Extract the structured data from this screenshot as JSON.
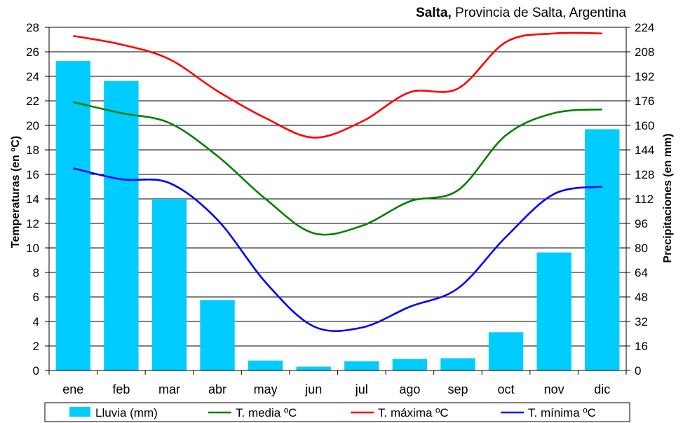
{
  "chart_data": {
    "type": "bar+line",
    "title_bold": "Salta,",
    "title_rest": " Provincia de Salta, Argentina",
    "ylabel_left": "Temperaturas (en ºC)",
    "ylabel_right": "Precipitaciones (en mm)",
    "categories": [
      "ene",
      "feb",
      "mar",
      "abr",
      "may",
      "jun",
      "jul",
      "ago",
      "sep",
      "oct",
      "nov",
      "dic"
    ],
    "ylim_left": [
      0,
      28
    ],
    "ylim_right": [
      0,
      224
    ],
    "yticks_left": [
      0,
      2,
      4,
      6,
      8,
      10,
      12,
      14,
      16,
      18,
      20,
      22,
      24,
      26,
      28
    ],
    "yticks_right": [
      0,
      16,
      32,
      48,
      64,
      80,
      96,
      112,
      128,
      144,
      160,
      176,
      192,
      208,
      224
    ],
    "grid": "horizontal",
    "legend_position": "bottom",
    "bar_series": {
      "name": "Lluvia (mm)",
      "axis": "right",
      "color": "#00CCFF",
      "values": [
        202,
        189,
        112,
        46,
        6.5,
        2.5,
        6,
        7.5,
        8,
        25,
        77,
        157.5
      ]
    },
    "line_series": [
      {
        "name": "T. media ºC",
        "axis": "left",
        "color": "#008000",
        "values": [
          21.9,
          21.0,
          20.2,
          17.5,
          14.0,
          11.2,
          11.8,
          13.8,
          14.7,
          19.2,
          21.0,
          21.3
        ]
      },
      {
        "name": "T. máxima ºC",
        "axis": "left",
        "color": "#FF0000",
        "values": [
          27.3,
          26.6,
          25.4,
          22.8,
          20.6,
          19.0,
          20.3,
          22.7,
          23.0,
          26.8,
          27.5,
          27.5
        ]
      },
      {
        "name": "T. mínima ºC",
        "axis": "left",
        "color": "#0000FF",
        "values": [
          16.5,
          15.6,
          15.3,
          12.3,
          7.2,
          3.6,
          3.5,
          5.2,
          6.7,
          10.9,
          14.4,
          15.0
        ]
      }
    ]
  }
}
